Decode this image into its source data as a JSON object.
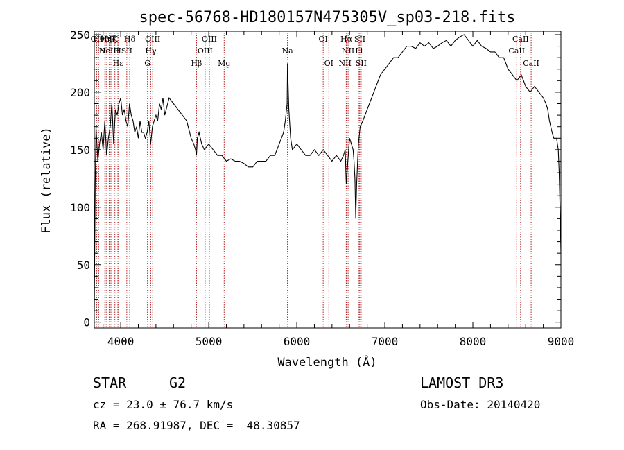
{
  "chart_data": {
    "type": "line",
    "title": "spec-56768-HD180157N475305V_sp03-218.fits",
    "xlabel": "Wavelength (Å)",
    "ylabel": "Flux (relative)",
    "xlim": [
      3700,
      9000
    ],
    "ylim": [
      -5,
      253
    ],
    "xticks": [
      4000,
      5000,
      6000,
      7000,
      8000,
      9000
    ],
    "yticks": [
      0,
      50,
      100,
      150,
      200,
      250
    ],
    "grid": false,
    "series": [
      {
        "color": "#000000",
        "x": [
          3700,
          3710,
          3720,
          3740,
          3760,
          3780,
          3800,
          3820,
          3840,
          3860,
          3880,
          3900,
          3920,
          3940,
          3960,
          3980,
          4000,
          4020,
          4040,
          4060,
          4080,
          4100,
          4120,
          4140,
          4160,
          4180,
          4200,
          4220,
          4240,
          4260,
          4280,
          4300,
          4320,
          4340,
          4360,
          4380,
          4400,
          4420,
          4440,
          4460,
          4480,
          4500,
          4550,
          4600,
          4650,
          4700,
          4750,
          4800,
          4830,
          4850,
          4861,
          4870,
          4890,
          4920,
          4950,
          5000,
          5050,
          5100,
          5150,
          5200,
          5250,
          5300,
          5350,
          5400,
          5450,
          5500,
          5550,
          5600,
          5650,
          5700,
          5750,
          5800,
          5850,
          5870,
          5890,
          5895,
          5900,
          5910,
          5930,
          5950,
          6000,
          6050,
          6100,
          6150,
          6200,
          6250,
          6300,
          6350,
          6400,
          6450,
          6500,
          6530,
          6550,
          6563,
          6580,
          6600,
          6620,
          6640,
          6650,
          6660,
          6670,
          6680,
          6700,
          6720,
          6750,
          6800,
          6850,
          6900,
          6950,
          7000,
          7050,
          7100,
          7150,
          7200,
          7250,
          7300,
          7350,
          7400,
          7450,
          7500,
          7550,
          7600,
          7650,
          7700,
          7750,
          7800,
          7850,
          7900,
          7950,
          8000,
          8050,
          8100,
          8150,
          8200,
          8250,
          8300,
          8350,
          8400,
          8450,
          8500,
          8550,
          8600,
          8650,
          8700,
          8750,
          8800,
          8830,
          8850,
          8870,
          8900,
          8920,
          8950,
          8970,
          8980,
          8990,
          9000
        ],
        "y": [
          10,
          120,
          170,
          140,
          155,
          165,
          150,
          175,
          145,
          160,
          170,
          190,
          155,
          185,
          180,
          190,
          195,
          180,
          185,
          175,
          170,
          190,
          180,
          175,
          165,
          170,
          160,
          175,
          165,
          165,
          160,
          165,
          175,
          155,
          170,
          175,
          180,
          175,
          190,
          185,
          195,
          180,
          195,
          190,
          185,
          180,
          175,
          160,
          155,
          150,
          145,
          160,
          165,
          155,
          150,
          155,
          150,
          145,
          145,
          140,
          142,
          140,
          140,
          138,
          135,
          135,
          140,
          140,
          140,
          145,
          145,
          155,
          165,
          175,
          190,
          225,
          210,
          185,
          160,
          150,
          155,
          150,
          145,
          145,
          150,
          145,
          150,
          145,
          140,
          145,
          140,
          145,
          150,
          120,
          140,
          160,
          155,
          150,
          140,
          125,
          90,
          120,
          155,
          170,
          175,
          185,
          195,
          205,
          215,
          220,
          225,
          230,
          230,
          235,
          240,
          240,
          238,
          243,
          240,
          243,
          238,
          240,
          243,
          245,
          240,
          245,
          248,
          250,
          245,
          240,
          245,
          240,
          238,
          235,
          235,
          230,
          230,
          220,
          215,
          210,
          215,
          205,
          200,
          205,
          200,
          195,
          190,
          185,
          175,
          165,
          160,
          160,
          150,
          130,
          100,
          60
        ]
      }
    ],
    "line_marks": [
      {
        "wave": 3727,
        "row": 0,
        "label": "OII"
      },
      {
        "wave": 3750,
        "row": 0,
        "label": "Hθ"
      },
      {
        "wave": 3820,
        "row": 1,
        "label": "He"
      },
      {
        "wave": 3835,
        "row": 0,
        "label": "Hη"
      },
      {
        "wave": 3869,
        "row": 1,
        "label": "NeIII"
      },
      {
        "wave": 3889,
        "row": 0,
        "label": "Hζ"
      },
      {
        "wave": 3934,
        "row": 0,
        "label": "K"
      },
      {
        "wave": 3968,
        "row": 1,
        "label": "H"
      },
      {
        "wave": 3970,
        "row": 2,
        "label": "Hε"
      },
      {
        "wave": 4069,
        "row": 1,
        "label": "SII"
      },
      {
        "wave": 4102,
        "row": 0,
        "label": "Hδ"
      },
      {
        "wave": 4304,
        "row": 2,
        "label": "G"
      },
      {
        "wave": 4341,
        "row": 1,
        "label": "Hγ"
      },
      {
        "wave": 4363,
        "row": 0,
        "label": "OIII"
      },
      {
        "wave": 4861,
        "row": 2,
        "label": "Hβ"
      },
      {
        "wave": 4959,
        "row": 1,
        "label": "OIII"
      },
      {
        "wave": 5007,
        "row": 0,
        "label": "OIII"
      },
      {
        "wave": 5175,
        "row": 2,
        "label": "Mg"
      },
      {
        "wave": 5894,
        "row": 1,
        "label": "Na"
      },
      {
        "wave": 6300,
        "row": 0,
        "label": "OI"
      },
      {
        "wave": 6364,
        "row": 2,
        "label": "OI"
      },
      {
        "wave": 6548,
        "row": 2,
        "label": "NII"
      },
      {
        "wave": 6563,
        "row": 0,
        "label": "Hα"
      },
      {
        "wave": 6583,
        "row": 1,
        "label": "NII"
      },
      {
        "wave": 6707,
        "row": 1,
        "label": "Li"
      },
      {
        "wave": 6716,
        "row": 0,
        "label": "SII"
      },
      {
        "wave": 6731,
        "row": 2,
        "label": "SII"
      },
      {
        "wave": 8498,
        "row": 1,
        "label": "CaII"
      },
      {
        "wave": 8542,
        "row": 0,
        "label": "CaII"
      },
      {
        "wave": 8662,
        "row": 2,
        "label": "CaII"
      }
    ],
    "line_mark_color": "#b22222"
  },
  "info": {
    "object_class": "STAR",
    "subclass": "G2",
    "survey": "LAMOST DR3",
    "cz": "cz = 23.0 ± 76.7 km/s",
    "obs_date": "Obs-Date: 20140420",
    "coords": "RA = 268.91987, DEC =  48.30857"
  }
}
